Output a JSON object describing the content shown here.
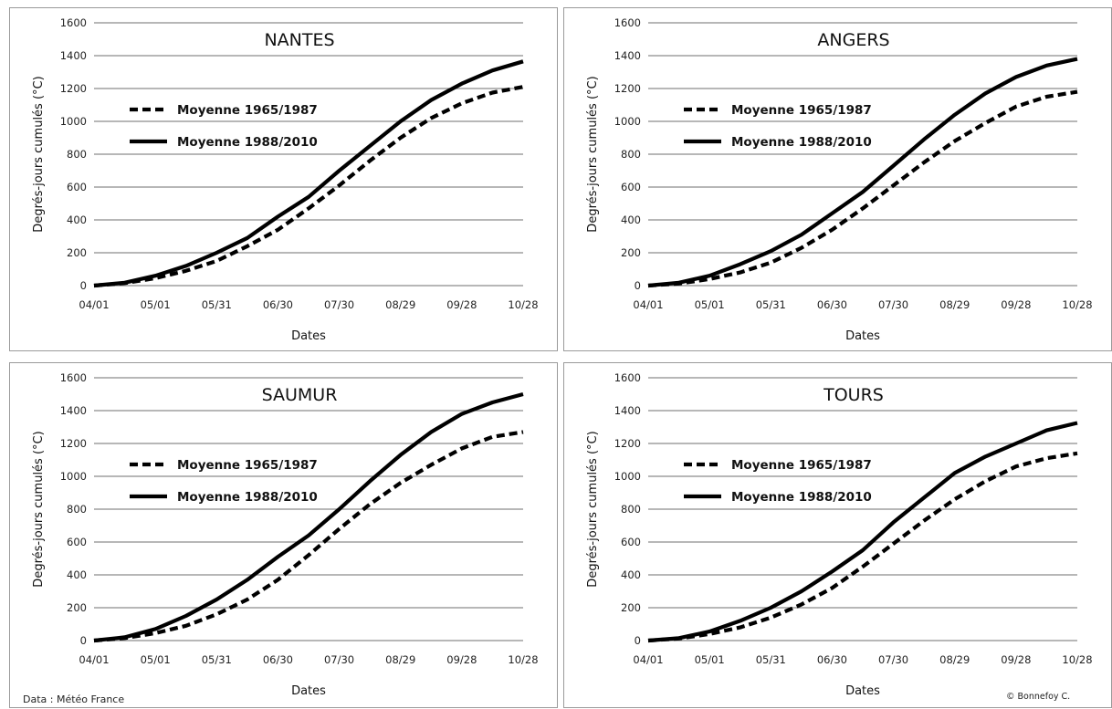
{
  "source_note": "Data : Météo France",
  "credit_note": "© Bonnefoy C.",
  "chart_data": [
    {
      "type": "line",
      "title": "NANTES",
      "xlabel": "Dates",
      "ylabel": "Degrés-jours cumulés (°C)",
      "ylim": [
        0,
        1600
      ],
      "yticks": [
        0,
        200,
        400,
        600,
        800,
        1000,
        1200,
        1400,
        1600
      ],
      "categories": [
        "04/01",
        "05/01",
        "05/31",
        "06/30",
        "07/30",
        "08/29",
        "09/28",
        "10/28"
      ],
      "grid": "horizontal",
      "legend_position": "left",
      "series": [
        {
          "name": "Moyenne 1965/1987",
          "style": "dashed",
          "x": [
            "04/01",
            "04/16",
            "05/01",
            "05/16",
            "05/31",
            "06/15",
            "06/30",
            "07/15",
            "07/30",
            "08/14",
            "08/29",
            "09/13",
            "09/28",
            "10/13",
            "10/28"
          ],
          "values": [
            0,
            15,
            45,
            90,
            150,
            240,
            340,
            470,
            610,
            760,
            900,
            1020,
            1110,
            1175,
            1210
          ]
        },
        {
          "name": "Moyenne 1988/2010",
          "style": "solid",
          "x": [
            "04/01",
            "04/16",
            "05/01",
            "05/16",
            "05/31",
            "06/15",
            "06/30",
            "07/15",
            "07/30",
            "08/14",
            "08/29",
            "09/13",
            "09/28",
            "10/13",
            "10/28"
          ],
          "values": [
            0,
            18,
            60,
            120,
            200,
            290,
            420,
            540,
            700,
            850,
            1000,
            1130,
            1230,
            1310,
            1365
          ]
        }
      ]
    },
    {
      "type": "line",
      "title": "ANGERS",
      "xlabel": "Dates",
      "ylabel": "Degrés-jours cumulés (°C)",
      "ylim": [
        0,
        1600
      ],
      "yticks": [
        0,
        200,
        400,
        600,
        800,
        1000,
        1200,
        1400,
        1600
      ],
      "categories": [
        "04/01",
        "05/01",
        "05/31",
        "06/30",
        "07/30",
        "08/29",
        "09/28",
        "10/28"
      ],
      "grid": "horizontal",
      "legend_position": "left",
      "series": [
        {
          "name": "Moyenne 1965/1987",
          "style": "dashed",
          "x": [
            "04/01",
            "04/16",
            "05/01",
            "05/16",
            "05/31",
            "06/15",
            "06/30",
            "07/15",
            "07/30",
            "08/14",
            "08/29",
            "09/13",
            "09/28",
            "10/13",
            "10/28"
          ],
          "values": [
            0,
            12,
            40,
            80,
            140,
            230,
            340,
            470,
            610,
            750,
            880,
            990,
            1090,
            1150,
            1180
          ]
        },
        {
          "name": "Moyenne 1988/2010",
          "style": "solid",
          "x": [
            "04/01",
            "04/16",
            "05/01",
            "05/16",
            "05/31",
            "06/15",
            "06/30",
            "07/15",
            "07/30",
            "08/14",
            "08/29",
            "09/13",
            "09/28",
            "10/13",
            "10/28"
          ],
          "values": [
            0,
            18,
            60,
            130,
            210,
            310,
            440,
            570,
            730,
            890,
            1040,
            1170,
            1270,
            1340,
            1380
          ]
        }
      ]
    },
    {
      "type": "line",
      "title": "SAUMUR",
      "xlabel": "Dates",
      "ylabel": "Degrés-jours cumulés (°C)",
      "ylim": [
        0,
        1600
      ],
      "yticks": [
        0,
        200,
        400,
        600,
        800,
        1000,
        1200,
        1400,
        1600
      ],
      "categories": [
        "04/01",
        "05/01",
        "05/31",
        "06/30",
        "07/30",
        "08/29",
        "09/28",
        "10/28"
      ],
      "grid": "horizontal",
      "legend_position": "left",
      "series": [
        {
          "name": "Moyenne 1965/1987",
          "style": "dashed",
          "x": [
            "04/01",
            "04/16",
            "05/01",
            "05/16",
            "05/31",
            "06/15",
            "06/30",
            "07/15",
            "07/30",
            "08/14",
            "08/29",
            "09/13",
            "09/28",
            "10/13",
            "10/28"
          ],
          "values": [
            0,
            15,
            45,
            90,
            160,
            250,
            370,
            520,
            680,
            830,
            960,
            1070,
            1170,
            1240,
            1270
          ]
        },
        {
          "name": "Moyenne 1988/2010",
          "style": "solid",
          "x": [
            "04/01",
            "04/16",
            "05/01",
            "05/16",
            "05/31",
            "06/15",
            "06/30",
            "07/15",
            "07/30",
            "08/14",
            "08/29",
            "09/13",
            "09/28",
            "10/13",
            "10/28"
          ],
          "values": [
            0,
            20,
            70,
            150,
            250,
            370,
            510,
            640,
            800,
            970,
            1130,
            1270,
            1380,
            1450,
            1500
          ]
        }
      ]
    },
    {
      "type": "line",
      "title": "TOURS",
      "xlabel": "Dates",
      "ylabel": "Degrés-jours cumulés (°C)",
      "ylim": [
        0,
        1600
      ],
      "yticks": [
        0,
        200,
        400,
        600,
        800,
        1000,
        1200,
        1400,
        1600
      ],
      "categories": [
        "04/01",
        "05/01",
        "05/31",
        "06/30",
        "07/30",
        "08/29",
        "09/28",
        "10/28"
      ],
      "grid": "horizontal",
      "legend_position": "left",
      "series": [
        {
          "name": "Moyenne 1965/1987",
          "style": "dashed",
          "x": [
            "04/01",
            "04/16",
            "05/01",
            "05/16",
            "05/31",
            "06/15",
            "06/30",
            "07/15",
            "07/30",
            "08/14",
            "08/29",
            "09/13",
            "09/28",
            "10/13",
            "10/28"
          ],
          "values": [
            0,
            12,
            40,
            80,
            140,
            220,
            320,
            450,
            590,
            730,
            860,
            970,
            1060,
            1110,
            1140
          ]
        },
        {
          "name": "Moyenne 1988/2010",
          "style": "solid",
          "x": [
            "04/01",
            "04/16",
            "05/01",
            "05/16",
            "05/31",
            "06/15",
            "06/30",
            "07/15",
            "07/30",
            "08/14",
            "08/29",
            "09/13",
            "09/28",
            "10/13",
            "10/28"
          ],
          "values": [
            0,
            15,
            55,
            120,
            200,
            300,
            420,
            550,
            720,
            870,
            1020,
            1120,
            1200,
            1280,
            1325
          ]
        }
      ]
    }
  ]
}
